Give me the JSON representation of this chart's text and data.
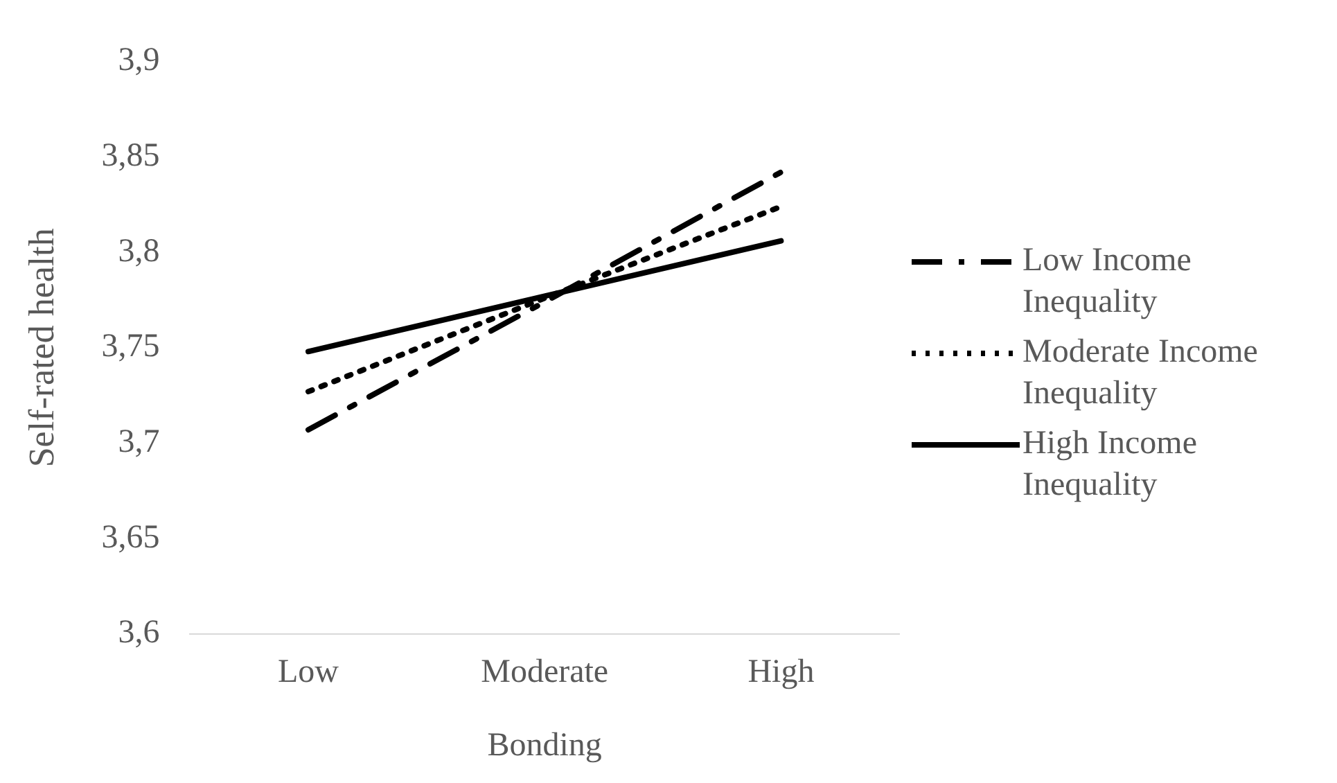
{
  "chart_data": {
    "type": "line",
    "xlabel": "Bonding",
    "ylabel": "Self-rated health",
    "categories": [
      "Low",
      "Moderate",
      "High"
    ],
    "series": [
      {
        "name": "Low Income Inequality",
        "color": "#000000",
        "line_style": "dashed",
        "values": [
          3.707,
          3.774,
          3.842
        ]
      },
      {
        "name": "Moderate Income Inequality",
        "color": "#000000",
        "line_style": "dotted",
        "values": [
          3.727,
          3.776,
          3.824
        ]
      },
      {
        "name": "High Income Inequality",
        "color": "#000000",
        "line_style": "solid",
        "values": [
          3.748,
          3.777,
          3.806
        ]
      }
    ],
    "ylim": [
      3.6,
      3.9
    ],
    "yticks": [
      {
        "value": 3.6,
        "label": "3,6"
      },
      {
        "value": 3.65,
        "label": "3,65"
      },
      {
        "value": 3.7,
        "label": "3,7"
      },
      {
        "value": 3.75,
        "label": "3,75"
      },
      {
        "value": 3.8,
        "label": "3,8"
      },
      {
        "value": 3.85,
        "label": "3,85"
      },
      {
        "value": 3.9,
        "label": "3,9"
      }
    ],
    "grid": false,
    "legend": "right",
    "marker": "none"
  }
}
